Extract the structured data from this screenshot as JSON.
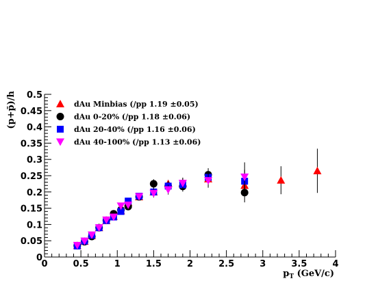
{
  "chart_data": {
    "type": "scatter",
    "xlabel_main": "p",
    "xlabel_sub": "T",
    "xlabel_unit": " (GeV/c)",
    "ylabel": "(p+p̄)/h",
    "xlim": [
      0,
      4
    ],
    "ylim": [
      0,
      0.5
    ],
    "x_ticks": [
      "0",
      "0.5",
      "1",
      "1.5",
      "2",
      "2.5",
      "3",
      "3.5",
      "4"
    ],
    "y_ticks": [
      "0",
      "0.05",
      "0.1",
      "0.15",
      "0.2",
      "0.25",
      "0.3",
      "0.35",
      "0.4",
      "0.45",
      "0.5"
    ],
    "grid": false,
    "legend_position": "top-left",
    "series": [
      {
        "name": "dAu Minbias (/pp 1.19 ±0.05)",
        "marker": "triangle-up",
        "color": "#ff0000",
        "points": [
          {
            "x": 0.45,
            "y": 0.035,
            "err": 0.004
          },
          {
            "x": 0.55,
            "y": 0.048,
            "err": 0.004
          },
          {
            "x": 0.65,
            "y": 0.066,
            "err": 0.005
          },
          {
            "x": 0.75,
            "y": 0.09,
            "err": 0.005
          },
          {
            "x": 0.85,
            "y": 0.112,
            "err": 0.006
          },
          {
            "x": 0.95,
            "y": 0.125,
            "err": 0.007
          },
          {
            "x": 1.05,
            "y": 0.142,
            "err": 0.008
          },
          {
            "x": 1.15,
            "y": 0.168,
            "err": 0.008
          },
          {
            "x": 1.3,
            "y": 0.185,
            "err": 0.009
          },
          {
            "x": 1.5,
            "y": 0.2,
            "err": 0.01
          },
          {
            "x": 1.7,
            "y": 0.225,
            "err": 0.012
          },
          {
            "x": 1.9,
            "y": 0.228,
            "err": 0.014
          },
          {
            "x": 2.25,
            "y": 0.24,
            "err": 0.018
          },
          {
            "x": 2.75,
            "y": 0.22,
            "err": 0.03
          },
          {
            "x": 3.25,
            "y": 0.236,
            "err": 0.043
          },
          {
            "x": 3.75,
            "y": 0.265,
            "err": 0.068
          }
        ]
      },
      {
        "name": "dAu 0-20% (/pp 1.18 ±0.06)",
        "marker": "circle",
        "color": "#000000",
        "points": [
          {
            "x": 0.45,
            "y": 0.035,
            "err": 0.004
          },
          {
            "x": 0.55,
            "y": 0.047,
            "err": 0.004
          },
          {
            "x": 0.65,
            "y": 0.063,
            "err": 0.005
          },
          {
            "x": 0.75,
            "y": 0.09,
            "err": 0.005
          },
          {
            "x": 0.85,
            "y": 0.113,
            "err": 0.006
          },
          {
            "x": 0.95,
            "y": 0.133,
            "err": 0.007
          },
          {
            "x": 1.05,
            "y": 0.145,
            "err": 0.008
          },
          {
            "x": 1.15,
            "y": 0.155,
            "err": 0.009
          },
          {
            "x": 1.3,
            "y": 0.185,
            "err": 0.01
          },
          {
            "x": 1.5,
            "y": 0.225,
            "err": 0.014
          },
          {
            "x": 1.7,
            "y": 0.218,
            "err": 0.015
          },
          {
            "x": 1.9,
            "y": 0.217,
            "err": 0.016
          },
          {
            "x": 2.25,
            "y": 0.253,
            "err": 0.02
          },
          {
            "x": 2.75,
            "y": 0.198,
            "err": 0.03
          }
        ]
      },
      {
        "name": "dAu 20-40% (/pp 1.16 ±0.06)",
        "marker": "square",
        "color": "#0000ff",
        "points": [
          {
            "x": 0.45,
            "y": 0.034,
            "err": 0.004
          },
          {
            "x": 0.55,
            "y": 0.049,
            "err": 0.004
          },
          {
            "x": 0.65,
            "y": 0.067,
            "err": 0.005
          },
          {
            "x": 0.75,
            "y": 0.09,
            "err": 0.005
          },
          {
            "x": 0.85,
            "y": 0.112,
            "err": 0.006
          },
          {
            "x": 0.95,
            "y": 0.123,
            "err": 0.007
          },
          {
            "x": 1.05,
            "y": 0.14,
            "err": 0.008
          },
          {
            "x": 1.15,
            "y": 0.172,
            "err": 0.009
          },
          {
            "x": 1.3,
            "y": 0.187,
            "err": 0.01
          },
          {
            "x": 1.5,
            "y": 0.2,
            "err": 0.012
          },
          {
            "x": 1.7,
            "y": 0.218,
            "err": 0.014
          },
          {
            "x": 1.9,
            "y": 0.222,
            "err": 0.016
          },
          {
            "x": 2.25,
            "y": 0.245,
            "err": 0.02
          },
          {
            "x": 2.75,
            "y": 0.233,
            "err": 0.035
          }
        ]
      },
      {
        "name": "dAu 40-100% (/pp 1.13 ±0.06)",
        "marker": "triangle-down",
        "color": "#ff00ff",
        "points": [
          {
            "x": 0.45,
            "y": 0.036,
            "err": 0.004
          },
          {
            "x": 0.55,
            "y": 0.049,
            "err": 0.004
          },
          {
            "x": 0.65,
            "y": 0.068,
            "err": 0.005
          },
          {
            "x": 0.75,
            "y": 0.09,
            "err": 0.005
          },
          {
            "x": 0.85,
            "y": 0.114,
            "err": 0.006
          },
          {
            "x": 0.95,
            "y": 0.123,
            "err": 0.007
          },
          {
            "x": 1.05,
            "y": 0.157,
            "err": 0.008
          },
          {
            "x": 1.15,
            "y": 0.16,
            "err": 0.009
          },
          {
            "x": 1.3,
            "y": 0.186,
            "err": 0.01
          },
          {
            "x": 1.5,
            "y": 0.196,
            "err": 0.013
          },
          {
            "x": 1.7,
            "y": 0.207,
            "err": 0.015
          },
          {
            "x": 1.9,
            "y": 0.227,
            "err": 0.017
          },
          {
            "x": 2.25,
            "y": 0.235,
            "err": 0.022
          },
          {
            "x": 2.75,
            "y": 0.246,
            "err": 0.045
          }
        ]
      }
    ]
  }
}
